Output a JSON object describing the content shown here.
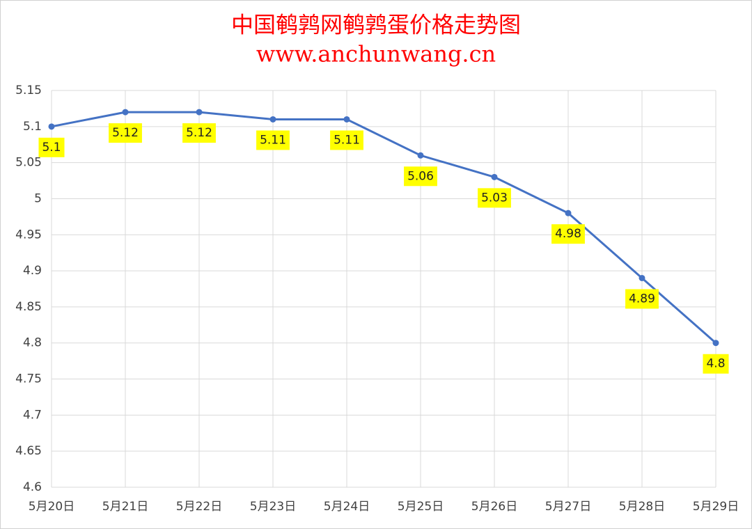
{
  "chart_data": {
    "type": "line",
    "title": "中国鹌鹑网鹌鹑蛋价格走势图",
    "subtitle": "www.anchunwang.cn",
    "categories": [
      "5月20日",
      "5月21日",
      "5月22日",
      "5月23日",
      "5月24日",
      "5月25日",
      "5月26日",
      "5月27日",
      "5月28日",
      "5月29日"
    ],
    "values": [
      5.1,
      5.12,
      5.12,
      5.11,
      5.11,
      5.06,
      5.03,
      4.98,
      4.89,
      4.8
    ],
    "color": "#4472c4",
    "label_background": "#ffff00",
    "ylim": [
      4.6,
      5.15
    ],
    "yticks": [
      4.6,
      4.65,
      4.7,
      4.75,
      4.8,
      4.85,
      4.9,
      4.95,
      5,
      5.05,
      5.1,
      5.15
    ],
    "grid": true
  }
}
